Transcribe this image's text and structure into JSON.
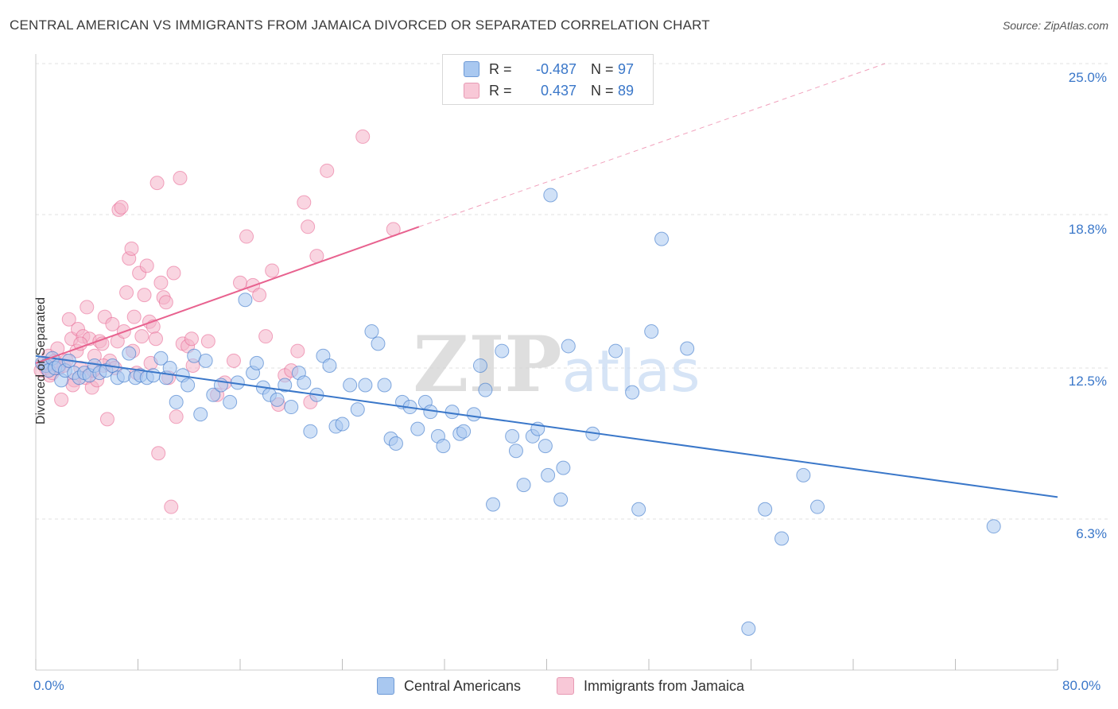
{
  "title": "CENTRAL AMERICAN VS IMMIGRANTS FROM JAMAICA DIVORCED OR SEPARATED CORRELATION CHART",
  "source": "Source: ZipAtlas.com",
  "watermark": "ZIPatlas",
  "colors": {
    "blue": "#3a77c9",
    "blue_fill": "#a9c8f0",
    "pink": "#e8628f",
    "pink_fill": "#f4b3c8",
    "grid": "#e0e0e0"
  },
  "legend": {
    "rows": [
      {
        "r_label": "R =",
        "r_value": "-0.487",
        "n_label": "N =",
        "n_value": "97"
      },
      {
        "r_label": "R =",
        "r_value": "0.437",
        "n_label": "N =",
        "n_value": "89"
      }
    ]
  },
  "bottom_legend": {
    "series1": "Central Americans",
    "series2": "Immigrants from Jamaica"
  },
  "chart_data": {
    "type": "scatter",
    "title": "CENTRAL AMERICAN VS IMMIGRANTS FROM JAMAICA DIVORCED OR SEPARATED CORRELATION CHART",
    "xlabel": "",
    "ylabel": "Divorced or Separated",
    "xlim": [
      0,
      80
    ],
    "ylim": [
      0,
      26
    ],
    "x_tick_labels": [
      "0.0%",
      "80.0%"
    ],
    "y_ticks": [
      6.3,
      12.5,
      18.8,
      25.0
    ],
    "y_tick_labels": [
      "6.3%",
      "12.5%",
      "18.8%",
      "25.0%"
    ],
    "grid": true,
    "series": [
      {
        "name": "Central Americans",
        "color": "#3a77c9",
        "trend": {
          "x": [
            0,
            80
          ],
          "y": [
            13.0,
            7.2
          ],
          "dashed_extension": false
        },
        "points": [
          [
            0.5,
            12.7
          ],
          [
            0.8,
            12.6
          ],
          [
            1.0,
            12.4
          ],
          [
            1.3,
            12.9
          ],
          [
            1.5,
            12.5
          ],
          [
            1.8,
            12.6
          ],
          [
            2.0,
            12.0
          ],
          [
            2.3,
            12.4
          ],
          [
            2.6,
            12.8
          ],
          [
            3.0,
            12.3
          ],
          [
            3.4,
            12.1
          ],
          [
            3.8,
            12.3
          ],
          [
            4.2,
            12.2
          ],
          [
            4.6,
            12.6
          ],
          [
            5.0,
            12.3
          ],
          [
            5.5,
            12.4
          ],
          [
            6.0,
            12.6
          ],
          [
            6.4,
            12.1
          ],
          [
            6.9,
            12.2
          ],
          [
            7.3,
            13.1
          ],
          [
            7.8,
            12.1
          ],
          [
            8.2,
            12.2
          ],
          [
            8.7,
            12.1
          ],
          [
            9.2,
            12.2
          ],
          [
            9.8,
            12.9
          ],
          [
            10.2,
            12.1
          ],
          [
            10.5,
            12.5
          ],
          [
            11.0,
            11.1
          ],
          [
            11.5,
            12.2
          ],
          [
            11.9,
            11.8
          ],
          [
            12.4,
            13.0
          ],
          [
            12.9,
            10.6
          ],
          [
            13.3,
            12.8
          ],
          [
            13.9,
            11.4
          ],
          [
            14.5,
            11.8
          ],
          [
            15.2,
            11.1
          ],
          [
            15.8,
            11.9
          ],
          [
            16.4,
            15.3
          ],
          [
            17.0,
            12.3
          ],
          [
            17.3,
            12.7
          ],
          [
            17.8,
            11.7
          ],
          [
            18.3,
            11.4
          ],
          [
            18.9,
            11.2
          ],
          [
            19.5,
            11.8
          ],
          [
            20.0,
            10.9
          ],
          [
            20.6,
            12.3
          ],
          [
            21.0,
            11.9
          ],
          [
            21.5,
            9.9
          ],
          [
            22.0,
            11.4
          ],
          [
            22.5,
            13.0
          ],
          [
            23.0,
            12.6
          ],
          [
            23.5,
            10.1
          ],
          [
            24.0,
            10.2
          ],
          [
            24.6,
            11.8
          ],
          [
            25.2,
            10.8
          ],
          [
            25.8,
            11.8
          ],
          [
            26.3,
            14.0
          ],
          [
            26.8,
            13.5
          ],
          [
            27.3,
            11.8
          ],
          [
            27.8,
            9.6
          ],
          [
            28.2,
            9.4
          ],
          [
            28.7,
            11.1
          ],
          [
            29.3,
            10.9
          ],
          [
            29.9,
            10.0
          ],
          [
            30.5,
            11.1
          ],
          [
            30.9,
            10.7
          ],
          [
            31.5,
            9.7
          ],
          [
            31.9,
            9.3
          ],
          [
            32.6,
            10.7
          ],
          [
            33.2,
            9.8
          ],
          [
            33.5,
            9.9
          ],
          [
            34.3,
            10.6
          ],
          [
            34.8,
            12.6
          ],
          [
            35.2,
            11.6
          ],
          [
            35.8,
            6.9
          ],
          [
            36.5,
            13.2
          ],
          [
            37.3,
            9.7
          ],
          [
            37.6,
            9.1
          ],
          [
            38.2,
            7.7
          ],
          [
            38.9,
            9.7
          ],
          [
            39.3,
            10.0
          ],
          [
            39.9,
            9.3
          ],
          [
            40.1,
            8.1
          ],
          [
            40.3,
            19.6
          ],
          [
            41.1,
            7.1
          ],
          [
            41.3,
            8.4
          ],
          [
            41.7,
            13.4
          ],
          [
            43.6,
            9.8
          ],
          [
            45.4,
            13.2
          ],
          [
            46.7,
            11.5
          ],
          [
            47.2,
            6.7
          ],
          [
            48.2,
            14.0
          ],
          [
            49.0,
            17.8
          ],
          [
            51.0,
            13.3
          ],
          [
            57.1,
            6.7
          ],
          [
            58.4,
            5.5
          ],
          [
            60.1,
            8.1
          ],
          [
            61.2,
            6.8
          ],
          [
            75.0,
            6.0
          ],
          [
            55.8,
            1.8
          ]
        ]
      },
      {
        "name": "Immigrants from Jamaica",
        "color": "#e8628f",
        "trend": {
          "x": [
            0,
            30
          ],
          "y": [
            12.7,
            18.3
          ],
          "dashed_extension": true,
          "dash_to": [
            66.5,
            25.0
          ]
        },
        "points": [
          [
            0.4,
            12.4
          ],
          [
            0.6,
            12.7
          ],
          [
            0.8,
            12.5
          ],
          [
            1.0,
            13.0
          ],
          [
            1.1,
            12.2
          ],
          [
            1.3,
            12.3
          ],
          [
            1.5,
            12.8
          ],
          [
            1.7,
            13.3
          ],
          [
            1.8,
            12.5
          ],
          [
            2.0,
            11.2
          ],
          [
            2.2,
            12.6
          ],
          [
            2.4,
            12.8
          ],
          [
            2.6,
            14.5
          ],
          [
            2.8,
            13.7
          ],
          [
            3.0,
            12.0
          ],
          [
            3.2,
            13.2
          ],
          [
            3.3,
            14.1
          ],
          [
            3.5,
            12.5
          ],
          [
            3.7,
            13.8
          ],
          [
            3.9,
            12.1
          ],
          [
            4.0,
            15.0
          ],
          [
            4.2,
            13.7
          ],
          [
            4.4,
            11.7
          ],
          [
            4.6,
            13.0
          ],
          [
            4.8,
            12.0
          ],
          [
            5.0,
            13.6
          ],
          [
            5.2,
            13.5
          ],
          [
            5.4,
            14.6
          ],
          [
            5.6,
            10.4
          ],
          [
            5.8,
            12.8
          ],
          [
            6.0,
            14.3
          ],
          [
            6.2,
            12.5
          ],
          [
            6.4,
            13.6
          ],
          [
            6.5,
            19.0
          ],
          [
            6.7,
            19.1
          ],
          [
            6.9,
            14.0
          ],
          [
            7.1,
            15.6
          ],
          [
            7.3,
            17.0
          ],
          [
            7.5,
            17.4
          ],
          [
            7.7,
            14.6
          ],
          [
            7.9,
            12.3
          ],
          [
            8.1,
            16.4
          ],
          [
            8.3,
            13.8
          ],
          [
            8.5,
            15.5
          ],
          [
            8.7,
            16.7
          ],
          [
            8.9,
            14.4
          ],
          [
            9.0,
            12.7
          ],
          [
            9.2,
            14.2
          ],
          [
            9.4,
            13.7
          ],
          [
            9.6,
            9.0
          ],
          [
            9.8,
            16.0
          ],
          [
            10.0,
            15.4
          ],
          [
            10.2,
            15.2
          ],
          [
            10.4,
            12.1
          ],
          [
            10.6,
            6.8
          ],
          [
            10.8,
            16.4
          ],
          [
            11.0,
            10.5
          ],
          [
            11.5,
            13.5
          ],
          [
            11.9,
            13.4
          ],
          [
            12.3,
            12.6
          ],
          [
            13.5,
            13.6
          ],
          [
            14.2,
            11.4
          ],
          [
            14.8,
            11.9
          ],
          [
            15.5,
            12.8
          ],
          [
            16.0,
            16.0
          ],
          [
            16.5,
            17.9
          ],
          [
            17.0,
            15.9
          ],
          [
            17.5,
            15.5
          ],
          [
            18.0,
            13.8
          ],
          [
            18.5,
            16.5
          ],
          [
            19.0,
            11.0
          ],
          [
            19.5,
            12.2
          ],
          [
            20.0,
            12.4
          ],
          [
            20.5,
            13.2
          ],
          [
            21.0,
            19.3
          ],
          [
            21.3,
            18.3
          ],
          [
            21.5,
            11.1
          ],
          [
            22.0,
            17.1
          ],
          [
            22.8,
            20.6
          ],
          [
            25.6,
            22.0
          ],
          [
            28.0,
            18.2
          ],
          [
            11.3,
            20.3
          ],
          [
            9.5,
            20.1
          ],
          [
            3.5,
            13.5
          ],
          [
            5.3,
            12.6
          ],
          [
            7.6,
            13.2
          ],
          [
            12.2,
            13.7
          ],
          [
            2.9,
            11.8
          ],
          [
            4.5,
            12.4
          ]
        ]
      }
    ]
  }
}
